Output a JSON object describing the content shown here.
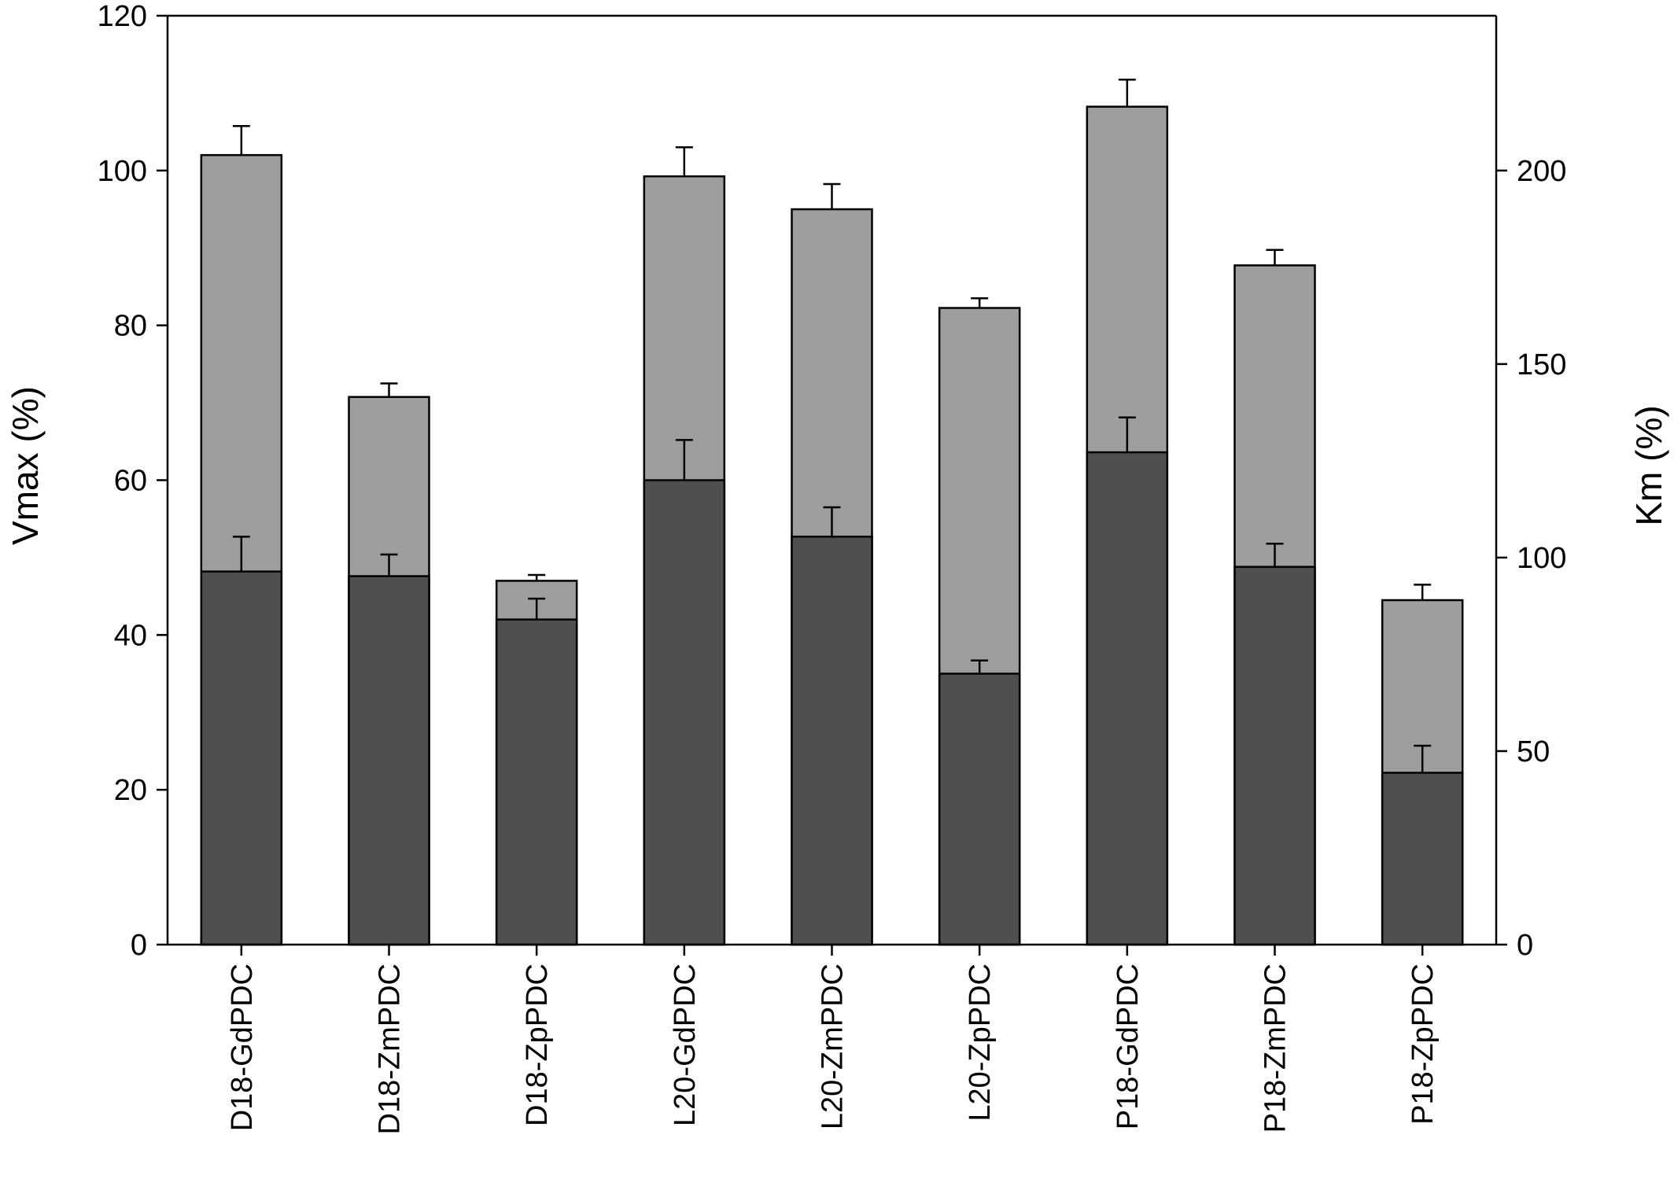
{
  "chart_data": {
    "type": "bar",
    "categories": [
      "D18-GdPDC",
      "D18-ZmPDC",
      "D18-ZpPDC",
      "L20-GdPDC",
      "L20-ZmPDC",
      "L20-ZpPDC",
      "P18-GdPDC",
      "P18-ZmPDC",
      "P18-ZpPDC"
    ],
    "series": [
      {
        "axis": "right",
        "color": "#9e9e9e",
        "values": [
          204,
          141.5,
          94,
          198.5,
          190,
          164.5,
          216.5,
          175.5,
          89
        ],
        "errors": [
          7.5,
          3.5,
          1.5,
          7.5,
          6.5,
          2.5,
          7,
          4,
          4
        ]
      },
      {
        "axis": "left",
        "color": "#4f4f4f",
        "values": [
          48.2,
          47.6,
          42,
          60,
          52.7,
          35,
          63.6,
          48.8,
          22.2
        ],
        "errors": [
          4.5,
          2.8,
          2.7,
          5.2,
          3.8,
          1.7,
          4.5,
          3,
          3.5
        ]
      }
    ],
    "ylabel": "Vmax (%)",
    "ylabel_right": "Km (%)",
    "ylim": [
      0,
      120
    ],
    "ylim_right": [
      0,
      240
    ],
    "yticks": [
      "0",
      "20",
      "40",
      "60",
      "80",
      "100",
      "120"
    ],
    "yticks_right": [
      "0",
      "50",
      "100",
      "150",
      "200"
    ],
    "grid": false,
    "legend": "none"
  }
}
